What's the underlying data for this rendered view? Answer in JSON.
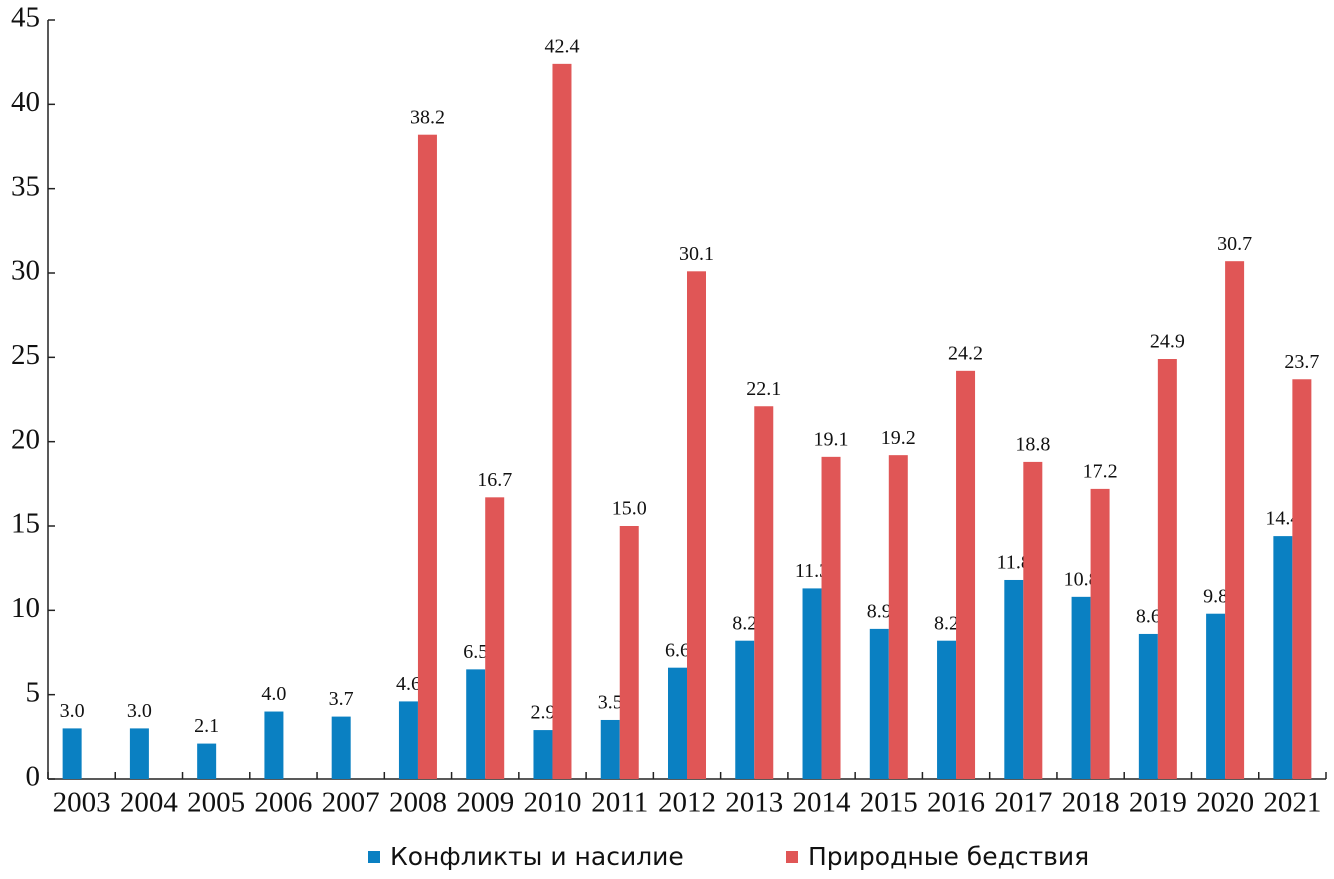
{
  "chart_data": {
    "type": "bar",
    "categories": [
      "2003",
      "2004",
      "2005",
      "2006",
      "2007",
      "2008",
      "2009",
      "2010",
      "2011",
      "2012",
      "2013",
      "2014",
      "2015",
      "2016",
      "2017",
      "2018",
      "2019",
      "2020",
      "2021"
    ],
    "series": [
      {
        "name": "Конфликты и насилие",
        "color": "#0a80c2",
        "values": [
          3.0,
          3.0,
          2.1,
          4.0,
          3.7,
          4.6,
          6.5,
          2.9,
          3.5,
          6.6,
          8.2,
          11.3,
          8.9,
          8.2,
          11.8,
          10.8,
          8.6,
          9.8,
          14.4
        ],
        "value_labels": [
          "3.0",
          "3.0",
          "2.1",
          "4.0",
          "3.7",
          "4.6",
          "6.5",
          "2.9",
          "3.5",
          "6.6",
          "8.2",
          "11.3",
          "8.9",
          "8.2",
          "11.8",
          "10.8",
          "8.6",
          "9.8",
          "14.4"
        ]
      },
      {
        "name": "Природные бедствия",
        "color": "#e05656",
        "values": [
          null,
          null,
          null,
          null,
          null,
          38.2,
          16.7,
          42.4,
          15.0,
          30.1,
          22.1,
          19.1,
          19.2,
          24.2,
          18.8,
          17.2,
          24.9,
          30.7,
          23.7
        ],
        "value_labels": [
          null,
          null,
          null,
          null,
          null,
          "38.2",
          "16.7",
          "42.4",
          "15.0",
          "30.1",
          "22.1",
          "19.1",
          "19.2",
          "24.2",
          "18.8",
          "17.2",
          "24.9",
          "30.7",
          "23.7"
        ]
      }
    ],
    "ylim": [
      0,
      45
    ],
    "yticks": [
      0,
      5,
      10,
      15,
      20,
      25,
      30,
      35,
      40,
      45
    ],
    "legend": "bottom"
  }
}
